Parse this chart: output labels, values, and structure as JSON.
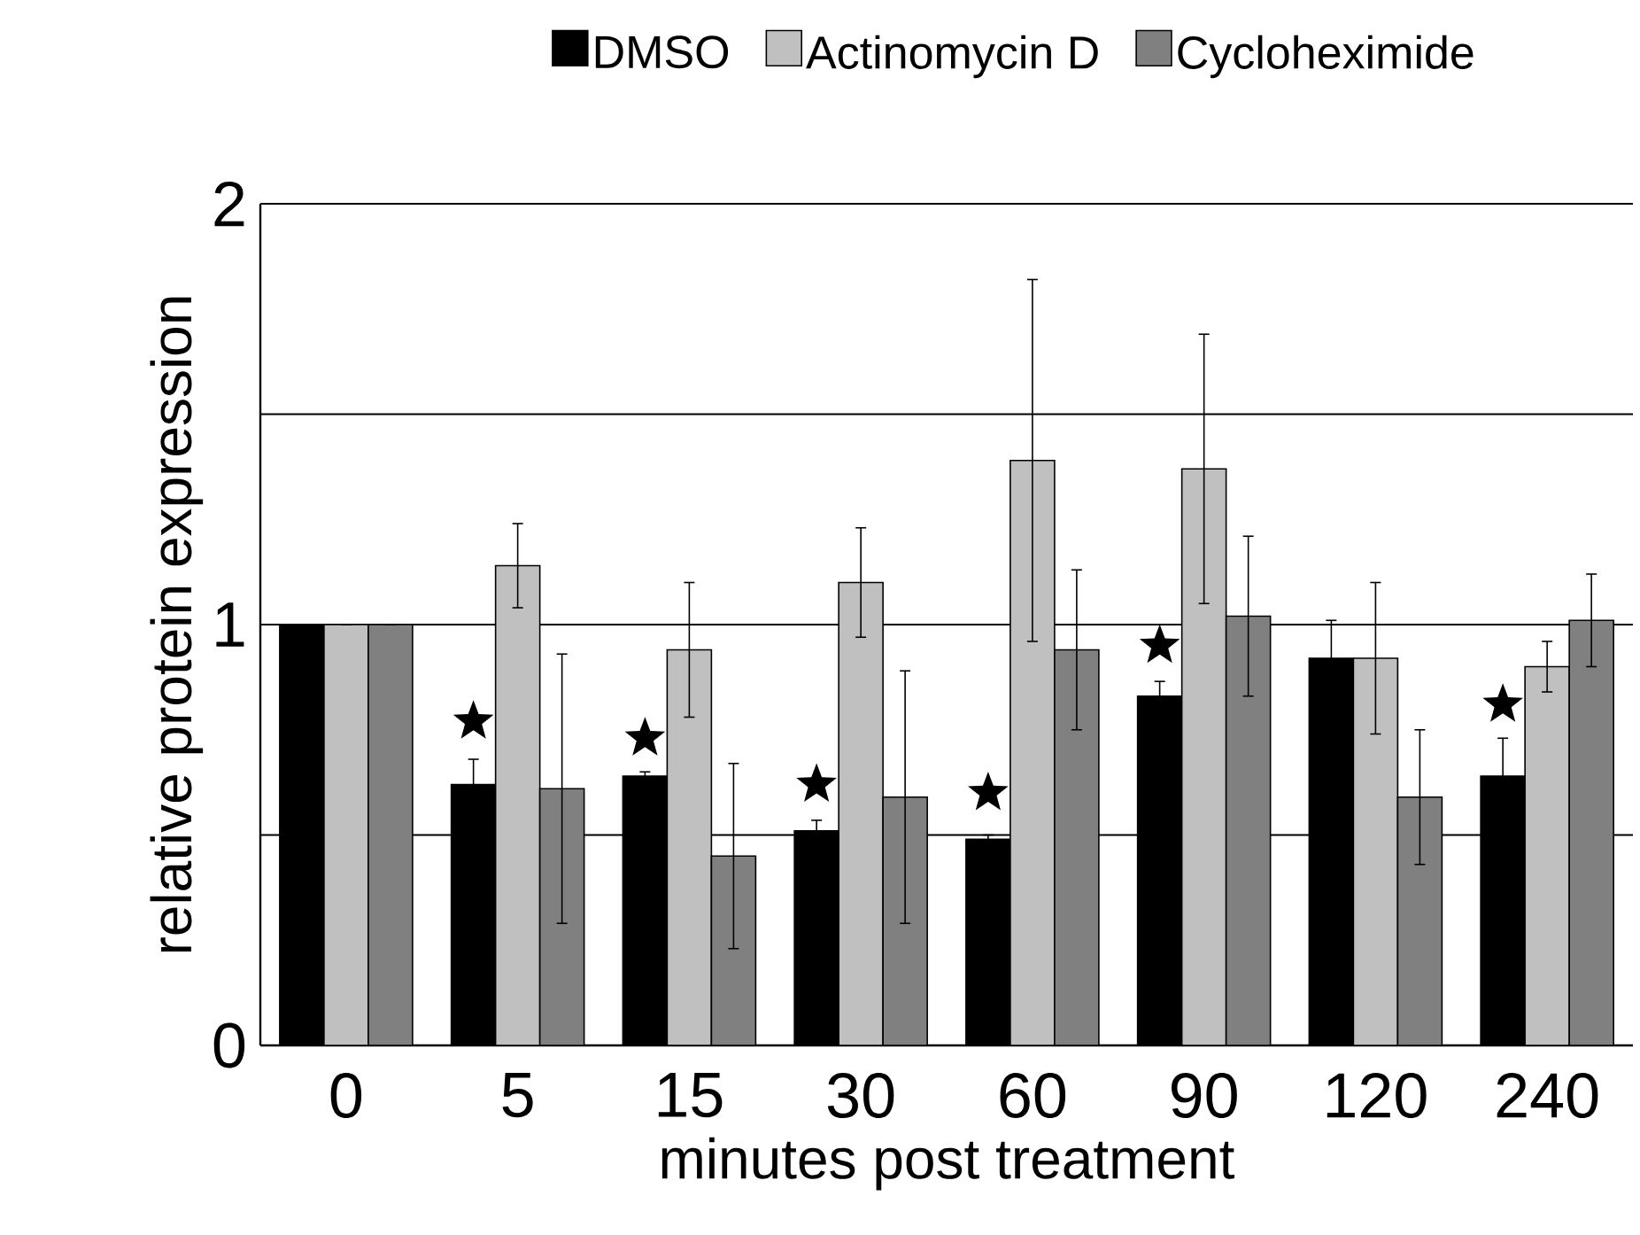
{
  "chart_data": {
    "type": "bar",
    "xlabel": "minutes post treatment",
    "ylabel": "relative protein expression",
    "categories": [
      "0",
      "5",
      "15",
      "30",
      "60",
      "90",
      "120",
      "240"
    ],
    "series": [
      {
        "name": "DMSO",
        "color": "#000000",
        "values": [
          1.0,
          0.62,
          0.64,
          0.51,
          0.49,
          0.83,
          0.92,
          0.64
        ],
        "errors": [
          0,
          0.06,
          0.01,
          0.025,
          0.01,
          0.035,
          0.09,
          0.09
        ]
      },
      {
        "name": "Actinomycin D",
        "color": "#c0c0c0",
        "values": [
          1.0,
          1.14,
          0.94,
          1.1,
          1.39,
          1.37,
          0.92,
          0.9
        ],
        "errors": [
          0,
          0.1,
          0.16,
          0.13,
          0.43,
          0.32,
          0.18,
          0.06
        ]
      },
      {
        "name": "Cycloheximide",
        "color": "#808080",
        "values": [
          1.0,
          0.61,
          0.45,
          0.59,
          0.94,
          1.02,
          0.59,
          1.01
        ],
        "errors": [
          0,
          0.32,
          0.22,
          0.3,
          0.19,
          0.19,
          0.16,
          0.11
        ]
      },
      {
        "type": "scatter",
        "color": "#000000",
        "marker": "star",
        "x": [
          "5",
          "15",
          "30",
          "60",
          "90",
          "240"
        ],
        "values": [
          0.77,
          0.73,
          0.62,
          0.6,
          0.95,
          0.81
        ]
      }
    ],
    "ylim": [
      0,
      2
    ],
    "yticks": [
      0,
      {
        "value": 0.5,
        "label": null
      },
      1,
      {
        "value": 1.5,
        "label": null
      },
      2
    ],
    "grid": "y",
    "legend": "top"
  }
}
